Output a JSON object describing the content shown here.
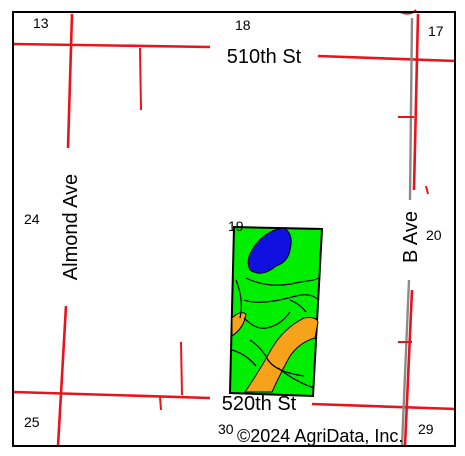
{
  "map": {
    "roads": {
      "top_street": "510th St",
      "bottom_street": "520th St",
      "left_avenue": "Almond Ave",
      "right_avenue": "B Ave"
    },
    "sections": {
      "s13": "13",
      "s18": "18",
      "s17": "17",
      "s24": "24",
      "s19": "19",
      "s20": "20",
      "s25": "25",
      "s30": "30",
      "s29": "29"
    },
    "copyright": "©2024 AgriData, Inc.",
    "colors": {
      "road": "#e8141c",
      "soil_green": "#00ee00",
      "soil_orange": "#f7a21b",
      "water_blue": "#1010e0",
      "border": "#000000"
    }
  }
}
